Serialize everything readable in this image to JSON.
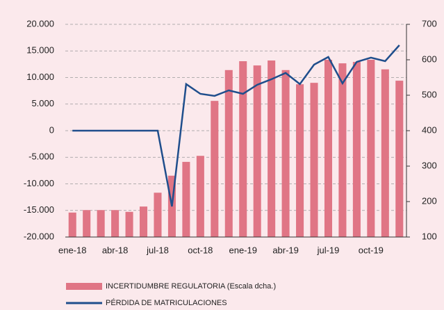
{
  "chart_data": {
    "type": "bar",
    "categories": [
      "ene-18",
      null,
      null,
      "abr-18",
      null,
      null,
      "jul-18",
      null,
      null,
      "oct-18",
      null,
      null,
      "ene-19",
      null,
      null,
      "abr-19",
      null,
      null,
      "jul-19",
      null,
      null,
      "oct-19",
      null,
      null
    ],
    "series": [
      {
        "name": "INCERTIDUMBRE REGULATORIA (Escala dcha.)",
        "type": "bar",
        "axis": "y2",
        "color": "#e07585",
        "values": [
          169,
          176,
          176,
          176,
          171,
          186,
          225,
          273,
          312,
          329,
          484,
          571,
          596,
          584,
          598,
          571,
          531,
          535,
          600,
          590,
          594,
          600,
          573,
          541
        ]
      },
      {
        "name": "PÉRDIDA DE MATRICULACIONES",
        "type": "line",
        "axis": "y",
        "color": "#1f4e8c",
        "values": [
          0,
          0,
          0,
          0,
          0,
          0,
          0,
          -14250,
          8760,
          6930,
          6540,
          7580,
          6930,
          8630,
          9670,
          10850,
          8760,
          12420,
          13860,
          8890,
          12940,
          13730,
          13070,
          16080
        ]
      }
    ],
    "ylim": [
      -20000,
      20000
    ],
    "yticks": [
      {
        "value": -20000,
        "label": "-20.000"
      },
      {
        "value": -15000,
        "label": "-15.000"
      },
      {
        "value": -10000,
        "label": "-10.000"
      },
      {
        "value": -5000,
        "label": "-5.000"
      },
      0,
      {
        "value": 5000,
        "label": "5.000"
      },
      {
        "value": 10000,
        "label": "10.000"
      },
      {
        "value": 15000,
        "label": "15.000"
      },
      {
        "value": 20000,
        "label": "20.000"
      }
    ],
    "y2lim": [
      100,
      700
    ],
    "y2ticks": [
      100,
      200,
      300,
      400,
      500,
      600,
      700
    ],
    "grid": true
  }
}
